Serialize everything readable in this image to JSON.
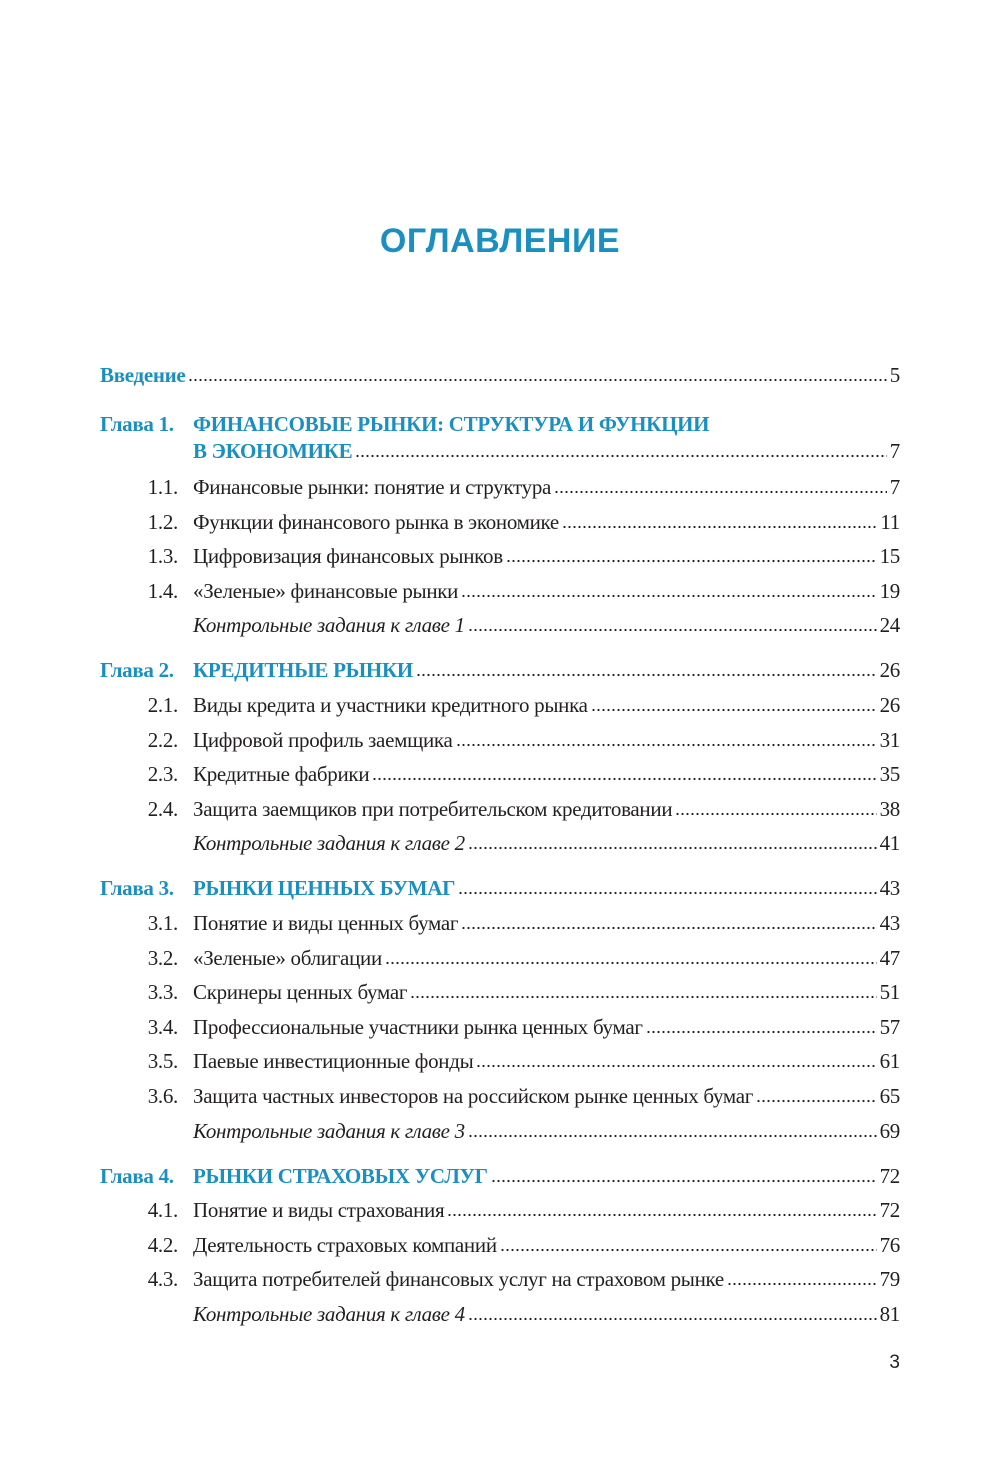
{
  "title": "ОГЛАВЛЕНИЕ",
  "accent_color": "#1a8fc0",
  "intro": {
    "label": "Введение",
    "page": "5"
  },
  "chapters": [
    {
      "label": "Глава 1.",
      "title_line1": "ФИНАНСОВЫЕ РЫНКИ: СТРУКТУРА И ФУНКЦИИ",
      "title_line2": "В ЭКОНОМИКЕ",
      "page": "7",
      "sections": [
        {
          "num": "1.1.",
          "title": "Финансовые рынки: понятие и структура",
          "page": "7"
        },
        {
          "num": "1.2.",
          "title": "Функции финансового рынка в экономике",
          "page": "11"
        },
        {
          "num": "1.3.",
          "title": "Цифровизация финансовых рынков",
          "page": "15"
        },
        {
          "num": "1.4.",
          "title": "«Зеленые» финансовые рынки",
          "page": "19"
        }
      ],
      "control": {
        "title": "Контрольные задания к главе 1",
        "page": "24"
      }
    },
    {
      "label": "Глава 2.",
      "title_line1": "КРЕДИТНЫЕ РЫНКИ",
      "page": "26",
      "sections": [
        {
          "num": "2.1.",
          "title": "Виды кредита и участники кредитного рынка",
          "page": "26"
        },
        {
          "num": "2.2.",
          "title": "Цифровой профиль заемщика",
          "page": "31"
        },
        {
          "num": "2.3.",
          "title": "Кредитные фабрики",
          "page": "35"
        },
        {
          "num": "2.4.",
          "title": "Защита заемщиков при потребительском кредитовании",
          "page": "38"
        }
      ],
      "control": {
        "title": "Контрольные задания к главе 2",
        "page": "41"
      }
    },
    {
      "label": "Глава 3.",
      "title_line1": "РЫНКИ ЦЕННЫХ БУМАГ",
      "page": "43",
      "sections": [
        {
          "num": "3.1.",
          "title": "Понятие и виды ценных бумаг",
          "page": "43"
        },
        {
          "num": "3.2.",
          "title": "«Зеленые» облигации",
          "page": "47"
        },
        {
          "num": "3.3.",
          "title": "Скринеры ценных бумаг",
          "page": "51"
        },
        {
          "num": "3.4.",
          "title": "Профессиональные участники рынка ценных бумаг",
          "page": "57"
        },
        {
          "num": "3.5.",
          "title": "Паевые инвестиционные фонды",
          "page": "61"
        },
        {
          "num": "3.6.",
          "title": "Защита частных инвесторов на российском рынке ценных бумаг",
          "page": "65"
        }
      ],
      "control": {
        "title": "Контрольные задания к главе 3",
        "page": "69"
      }
    },
    {
      "label": "Глава 4.",
      "title_line1": "РЫНКИ СТРАХОВЫХ УСЛУГ",
      "page": "72",
      "sections": [
        {
          "num": "4.1.",
          "title": "Понятие и виды страхования",
          "page": "72"
        },
        {
          "num": "4.2.",
          "title": "Деятельность страховых компаний",
          "page": "76"
        },
        {
          "num": "4.3.",
          "title": "Защита потребителей финансовых услуг на страховом рынке",
          "page": "79"
        }
      ],
      "control": {
        "title": "Контрольные задания к главе 4",
        "page": "81"
      }
    }
  ],
  "page_number": "3"
}
